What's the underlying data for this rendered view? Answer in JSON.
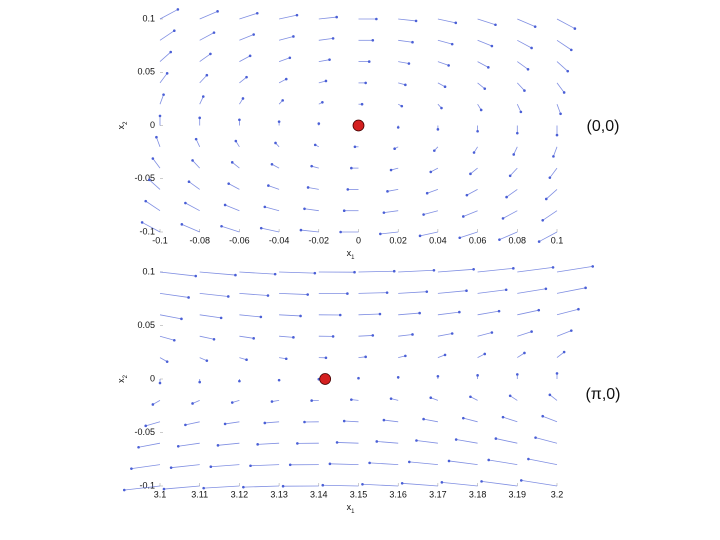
{
  "chart_data": [
    {
      "type": "quiver",
      "xlabel": "x",
      "xlabel_sub": "1",
      "ylabel": "x",
      "ylabel_sub": "2",
      "x": [
        -0.1,
        -0.08,
        -0.06,
        -0.04,
        -0.02,
        0,
        0.02,
        0.04,
        0.06,
        0.08,
        0.1
      ],
      "y": [
        -0.1,
        -0.08,
        -0.06,
        -0.04,
        -0.02,
        0,
        0.02,
        0.04,
        0.06,
        0.08,
        0.1
      ],
      "dx2": [
        0.1,
        0.08,
        0.06,
        0.04,
        0.02,
        0,
        -0.02,
        -0.04,
        -0.06,
        -0.08,
        -0.1
      ],
      "point": {
        "x": 0,
        "y": 0
      },
      "annotation": "(0,0)",
      "color": "#4a5fd6",
      "point_color": "#d42020",
      "xlim": [
        -0.1,
        0.1
      ],
      "ylim": [
        -0.1,
        0.1
      ],
      "xticks": [
        -0.1,
        -0.08,
        -0.06,
        -0.04,
        -0.02,
        0,
        0.02,
        0.04,
        0.06,
        0.08,
        0.1
      ],
      "yticks": [
        -0.1,
        -0.05,
        0,
        0.05,
        0.1
      ]
    },
    {
      "type": "quiver",
      "xlabel": "x",
      "xlabel_sub": "1",
      "ylabel": "x",
      "ylabel_sub": "2",
      "x": [
        3.1,
        3.11,
        3.12,
        3.13,
        3.14,
        3.15,
        3.16,
        3.17,
        3.18,
        3.19,
        3.2
      ],
      "y": [
        -0.1,
        -0.08,
        -0.06,
        -0.04,
        -0.02,
        0,
        0.02,
        0.04,
        0.06,
        0.08,
        0.1
      ],
      "dx2": [
        -0.042,
        -0.032,
        -0.022,
        -0.012,
        -0.002,
        0.008,
        0.018,
        0.028,
        0.038,
        0.048,
        0.058
      ],
      "point": {
        "x": 3.1416,
        "y": 0
      },
      "annotation": "(π,0)",
      "color": "#4a5fd6",
      "point_color": "#d42020",
      "xlim": [
        3.1,
        3.2
      ],
      "ylim": [
        -0.1,
        0.1
      ],
      "xticks": [
        3.1,
        3.11,
        3.12,
        3.13,
        3.14,
        3.15,
        3.16,
        3.17,
        3.18,
        3.19,
        3.2
      ],
      "yticks": [
        -0.1,
        -0.05,
        0,
        0.05,
        0.1
      ]
    }
  ]
}
